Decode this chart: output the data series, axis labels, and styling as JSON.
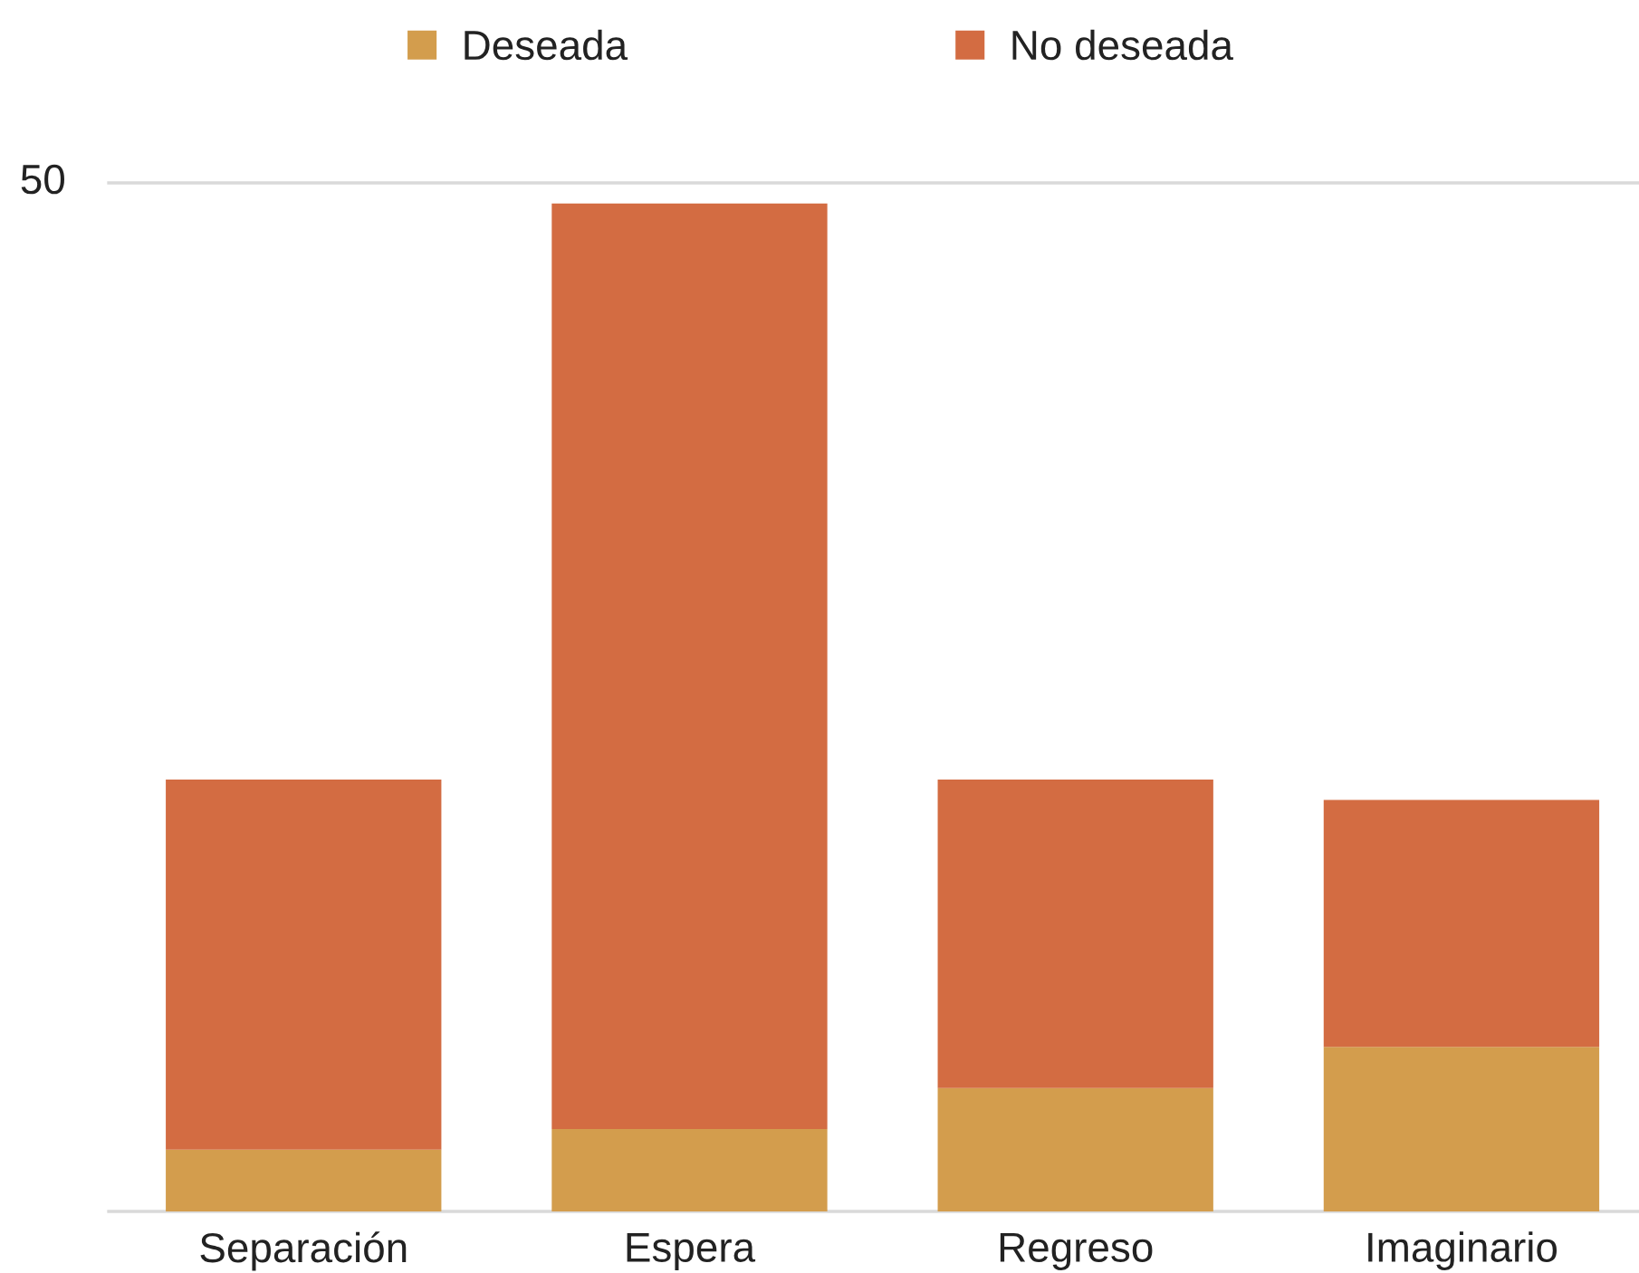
{
  "chart_data": {
    "type": "bar",
    "stacked": true,
    "categories": [
      "Separación",
      "Espera",
      "Regreso",
      "Imaginario"
    ],
    "series": [
      {
        "name": "Deseada",
        "color": "#d39d4d",
        "values": [
          3,
          4,
          6,
          8
        ]
      },
      {
        "name": "No deseada",
        "color": "#d36c42",
        "values": [
          18,
          45,
          15,
          12
        ]
      }
    ],
    "ylim": [
      0,
      50
    ],
    "yticks": [
      50
    ],
    "legend": "top"
  }
}
